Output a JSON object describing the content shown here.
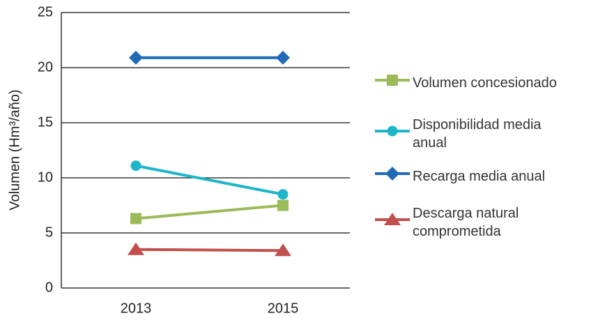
{
  "chart_data": {
    "type": "line",
    "y_label": "Volumen (Hm³/año)",
    "categories": [
      "2013",
      "2015"
    ],
    "series": [
      {
        "name": "Volumen concesionado",
        "color": "#9bbb59",
        "marker": "square",
        "values": [
          6.3,
          7.5
        ]
      },
      {
        "name": "Disponibilidad media anual",
        "color": "#1fb5c9",
        "marker": "circle",
        "values": [
          11.1,
          8.5
        ]
      },
      {
        "name": "Recarga media anual",
        "color": "#1f6bb5",
        "marker": "diamond",
        "values": [
          20.9,
          20.9
        ]
      },
      {
        "name": "Descarga natural comprometida",
        "color": "#c0504d",
        "marker": "triangle",
        "values": [
          3.5,
          3.4
        ]
      }
    ],
    "ylim": [
      0,
      25
    ],
    "yticks": [
      0,
      5,
      10,
      15,
      20,
      25
    ],
    "grid": true
  }
}
